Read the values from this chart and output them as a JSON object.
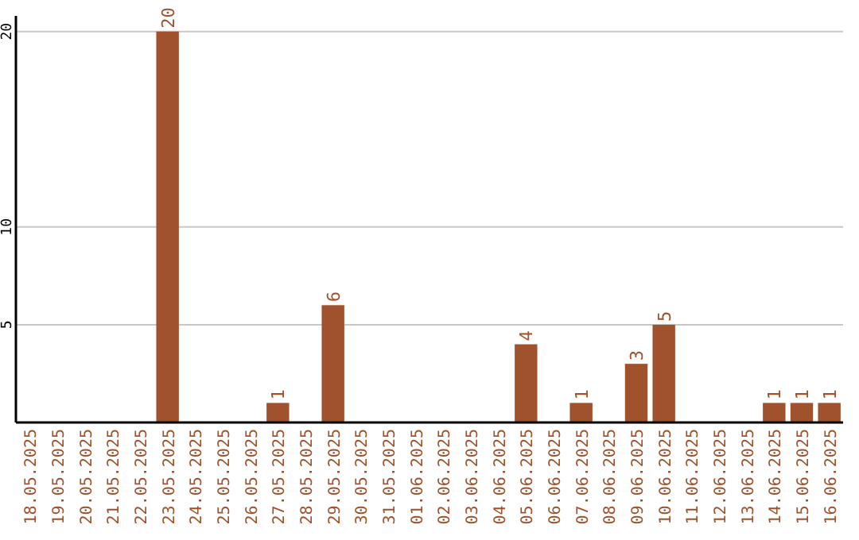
{
  "chart_data": {
    "type": "bar",
    "categories": [
      "18.05.2025",
      "19.05.2025",
      "20.05.2025",
      "21.05.2025",
      "22.05.2025",
      "23.05.2025",
      "24.05.2025",
      "25.05.2025",
      "26.05.2025",
      "27.05.2025",
      "28.05.2025",
      "29.05.2025",
      "30.05.2025",
      "31.05.2025",
      "01.06.2025",
      "02.06.2025",
      "03.06.2025",
      "04.06.2025",
      "05.06.2025",
      "06.06.2025",
      "07.06.2025",
      "08.06.2025",
      "09.06.2025",
      "10.06.2025",
      "11.06.2025",
      "12.06.2025",
      "13.06.2025",
      "14.06.2025",
      "15.06.2025",
      "16.06.2025"
    ],
    "values": [
      0,
      0,
      0,
      0,
      0,
      20,
      0,
      0,
      0,
      1,
      0,
      6,
      0,
      0,
      0,
      0,
      0,
      0,
      4,
      0,
      1,
      0,
      3,
      5,
      0,
      0,
      0,
      1,
      1,
      1
    ],
    "value_labels": [
      null,
      null,
      null,
      null,
      null,
      "20",
      null,
      null,
      null,
      "1",
      null,
      "6",
      null,
      null,
      null,
      null,
      null,
      null,
      "4",
      null,
      "1",
      null,
      "3",
      "5",
      null,
      null,
      null,
      "1",
      "1",
      "1"
    ],
    "color": "#a0522d",
    "ylim": [
      0,
      20.8
    ],
    "yticks": [
      5,
      10,
      20
    ],
    "grid": "y"
  }
}
